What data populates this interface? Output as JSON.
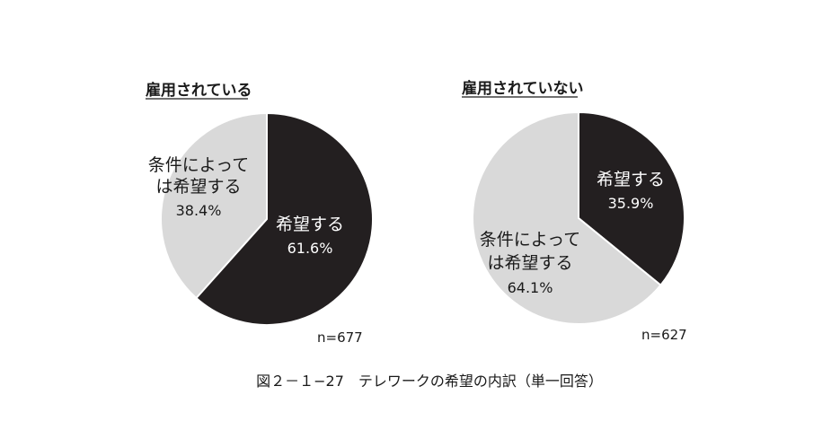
{
  "caption": "図２－１−27　テレワークの希望の内訳（単一回答）",
  "colors": {
    "dark": "#231f20",
    "light": "#d9d9d9",
    "border": "#ffffff"
  },
  "chart_data": [
    {
      "type": "pie",
      "title": "雇用されている",
      "n_label": "n=677",
      "slices": [
        {
          "label_lines": [
            "希望する"
          ],
          "pct_label": "61.6%",
          "value": 61.6,
          "color": "#231f20"
        },
        {
          "label_lines": [
            "条件によって",
            "は希望する"
          ],
          "pct_label": "38.4%",
          "value": 38.4,
          "color": "#d9d9d9"
        }
      ]
    },
    {
      "type": "pie",
      "title": "雇用されていない",
      "n_label": "n=627",
      "slices": [
        {
          "label_lines": [
            "希望する"
          ],
          "pct_label": "35.9%",
          "value": 35.9,
          "color": "#231f20"
        },
        {
          "label_lines": [
            "条件によって",
            "は希望する"
          ],
          "pct_label": "64.1%",
          "value": 64.1,
          "color": "#d9d9d9"
        }
      ]
    }
  ]
}
